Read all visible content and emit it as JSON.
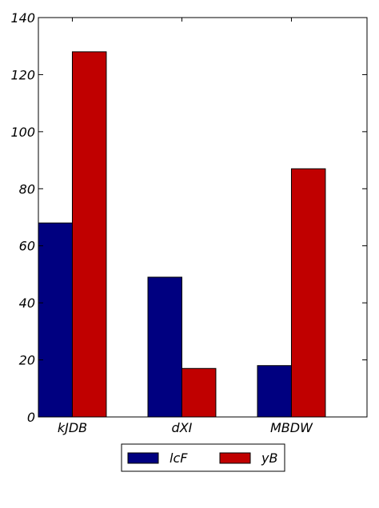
{
  "chart_data": {
    "type": "bar",
    "categories": [
      "kJDB",
      "dXI",
      "MBDW"
    ],
    "series": [
      {
        "name": "lcF",
        "values": [
          68,
          49,
          18
        ],
        "color": "#000080"
      },
      {
        "name": "yB",
        "values": [
          128,
          17,
          87
        ],
        "color": "#c00000"
      }
    ],
    "ylim": [
      0,
      140
    ],
    "yticks": [
      0,
      20,
      40,
      60,
      80,
      100,
      120,
      140
    ],
    "grid": false,
    "legend_position": "bottom-center",
    "title": "",
    "xlabel": "",
    "ylabel": ""
  }
}
